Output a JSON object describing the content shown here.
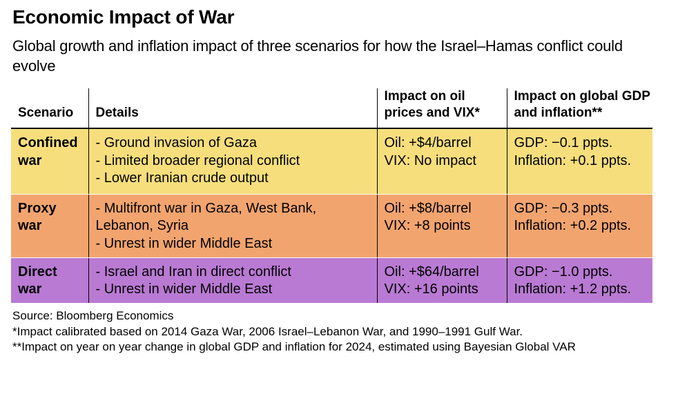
{
  "title": "Economic Impact of War",
  "subtitle": "Global growth and inflation impact of three scenarios for how the Israel–Hamas conflict could evolve",
  "table": {
    "headers": {
      "scenario": "Scenario",
      "details": "Details",
      "oil_vix": "Impact on oil prices and VIX*",
      "gdp_inflation": "Impact on global GDP and inflation**"
    },
    "rows": [
      {
        "color": "#f6de7c",
        "scenario": "Confined war",
        "details": [
          "- Ground invasion of Gaza",
          "- Limited broader regional conflict",
          "- Lower Iranian crude output"
        ],
        "oil_vix": [
          "Oil: +$4/barrel",
          "VIX: No impact"
        ],
        "gdp_inflation": [
          "GDP: −0.1 ppts.",
          "Inflation: +0.1 ppts."
        ]
      },
      {
        "color": "#f2a46f",
        "scenario": "Proxy war",
        "details": [
          "- Multifront war in Gaza, West Bank,",
          "Lebanon, Syria",
          "- Unrest in wider Middle East"
        ],
        "oil_vix": [
          "Oil: +$8/barrel",
          "VIX: +8 points"
        ],
        "gdp_inflation": [
          "GDP: −0.3 ppts.",
          "Inflation: +0.2 ppts."
        ]
      },
      {
        "color": "#b97ad3",
        "scenario": "Direct war",
        "details": [
          "- Israel and Iran in direct conflict",
          "- Unrest in wider Middle East"
        ],
        "oil_vix": [
          "Oil: +$64/barrel",
          "VIX: +16 points"
        ],
        "gdp_inflation": [
          "GDP: −1.0 ppts.",
          "Inflation: +1.2 ppts."
        ]
      }
    ]
  },
  "notes": {
    "source": "Source: Bloomberg Economics",
    "footnote1": "*Impact calibrated based on 2014 Gaza War, 2006 Israel–Lebanon War, and 1990–1991 Gulf War.",
    "footnote2": "**Impact on year on year change in global GDP and inflation for 2024, estimated using Bayesian Global VAR"
  }
}
